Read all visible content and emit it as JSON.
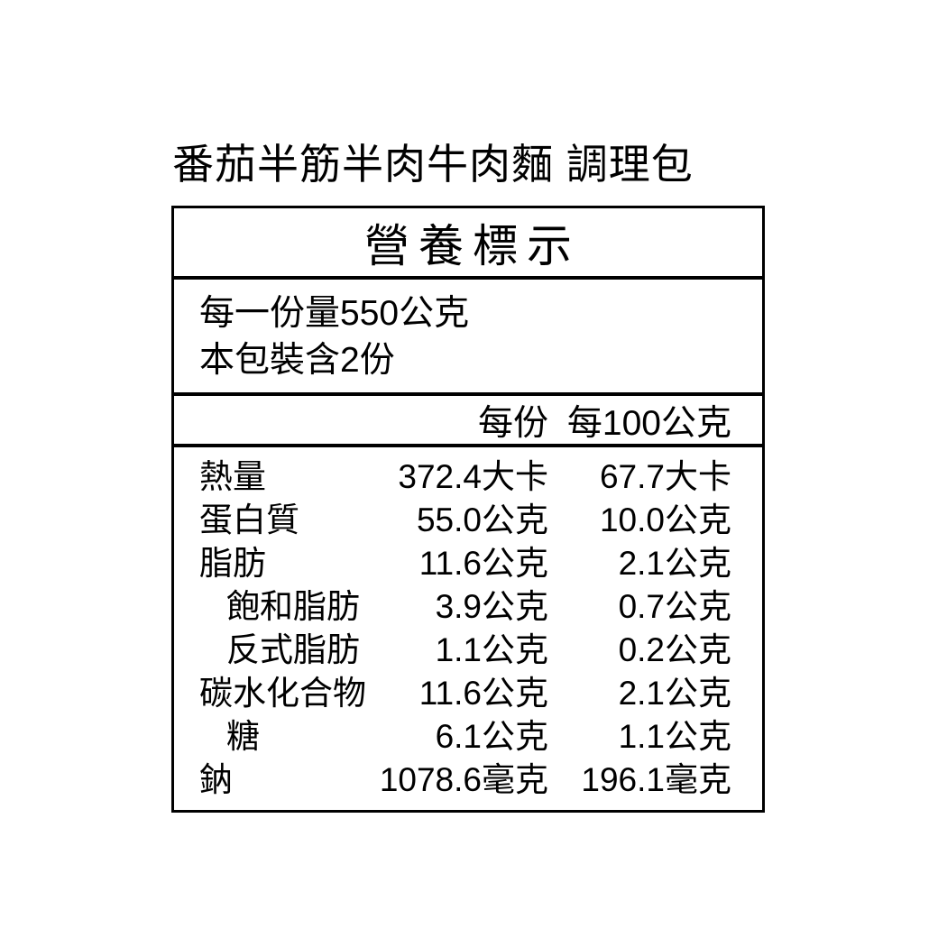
{
  "product": {
    "title": "番茄半筋半肉牛肉麵 調理包"
  },
  "label": {
    "header": "營養標示",
    "serving": {
      "serving_size_line": "每一份量550公克",
      "servings_per_pack_line": "本包裝含2份"
    },
    "columns": {
      "per_serving": "每份",
      "per_100g": "每100公克"
    },
    "rows": [
      {
        "name": "熱量",
        "indent": false,
        "per_serving": "372.4大卡",
        "per_100g": "67.7大卡"
      },
      {
        "name": "蛋白質",
        "indent": false,
        "per_serving": "55.0公克",
        "per_100g": "10.0公克"
      },
      {
        "name": "脂肪",
        "indent": false,
        "per_serving": "11.6公克",
        "per_100g": "2.1公克"
      },
      {
        "name": "飽和脂肪",
        "indent": true,
        "per_serving": "3.9公克",
        "per_100g": "0.7公克"
      },
      {
        "name": "反式脂肪",
        "indent": true,
        "per_serving": "1.1公克",
        "per_100g": "0.2公克"
      },
      {
        "name": "碳水化合物",
        "indent": false,
        "per_serving": "11.6公克",
        "per_100g": "2.1公克"
      },
      {
        "name": "糖",
        "indent": true,
        "per_serving": "6.1公克",
        "per_100g": "1.1公克"
      },
      {
        "name": "鈉",
        "indent": false,
        "per_serving": "1078.6毫克",
        "per_100g": "196.1毫克"
      }
    ],
    "colors": {
      "border": "#000000",
      "text": "#000000",
      "background": "#ffffff"
    }
  }
}
